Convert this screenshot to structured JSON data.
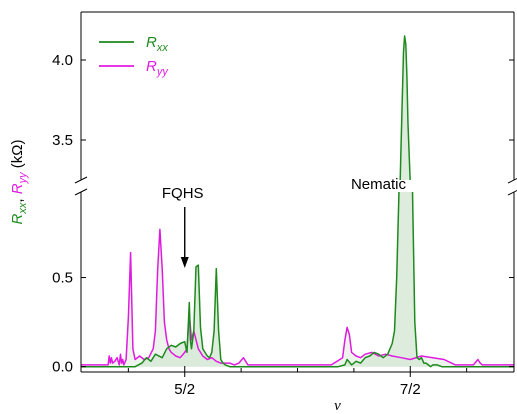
{
  "chart_data": {
    "type": "line",
    "xlabel": "ν",
    "ylabel": {
      "parts": [
        {
          "text": "R",
          "sub": "xx",
          "color": "#1e8a1e"
        },
        {
          "text": ", ",
          "sub": "",
          "color": "#000000"
        },
        {
          "text": "R",
          "sub": "yy",
          "color": "#e01be0"
        },
        {
          "text": " (kΩ)",
          "sub": "",
          "color": "#000000"
        }
      ]
    },
    "x_ticks": [
      {
        "value": 2.5,
        "label": "5/2"
      },
      {
        "value": 3.5,
        "label": "7/2"
      }
    ],
    "x_minor_ticks": [
      2.25,
      2.75,
      3.0,
      3.25,
      3.75
    ],
    "xlim": [
      2.04,
      3.96
    ],
    "y_panels": {
      "upper": {
        "ylim": [
          3.25,
          4.3
        ],
        "ticks": [
          {
            "value": 3.5,
            "label": "3.5"
          },
          {
            "value": 4.0,
            "label": "4.0"
          }
        ]
      },
      "lower": {
        "ylim": [
          -0.03,
          0.98
        ],
        "ticks": [
          {
            "value": 0.0,
            "label": "0.0"
          },
          {
            "value": 0.5,
            "label": "0.5"
          }
        ]
      }
    },
    "colors": {
      "Rxx": "#1e8a1e",
      "Ryy": "#e01be0",
      "fill": "#d9ead9"
    },
    "legend": {
      "placement": "top-left",
      "entries": [
        {
          "key": "Rxx",
          "main": "R",
          "sub": "xx",
          "color": "#1e8a1e"
        },
        {
          "key": "Ryy",
          "main": "R",
          "sub": "yy",
          "color": "#e01be0"
        }
      ]
    },
    "annotations": [
      {
        "text": "FQHS",
        "x": 2.5,
        "y": 0.7,
        "arrow": true
      },
      {
        "text": "Nematic",
        "x": 3.43,
        "y": 2.0,
        "arrow": false
      }
    ],
    "series": [
      {
        "key": "Rxx",
        "x": [
          2.04,
          2.28,
          2.31,
          2.33,
          2.35,
          2.37,
          2.4,
          2.42,
          2.44,
          2.46,
          2.48,
          2.5,
          2.51,
          2.52,
          2.525,
          2.53,
          2.54,
          2.55,
          2.56,
          2.57,
          2.58,
          2.59,
          2.6,
          2.61,
          2.62,
          2.63,
          2.64,
          2.65,
          2.66,
          2.67,
          2.68,
          2.7,
          2.74,
          2.8,
          2.9,
          3.0,
          3.1,
          3.18,
          3.21,
          3.22,
          3.24,
          3.26,
          3.28,
          3.3,
          3.32,
          3.34,
          3.36,
          3.38,
          3.4,
          3.42,
          3.43,
          3.44,
          3.45,
          3.455,
          3.46,
          3.47,
          3.475,
          3.48,
          3.485,
          3.49,
          3.5,
          3.51,
          3.52,
          3.53,
          3.54,
          3.55,
          3.56,
          3.57,
          3.58,
          3.59,
          3.6,
          3.62,
          3.64,
          3.7,
          3.8,
          3.96
        ],
        "y": [
          0.0,
          0.0,
          0.02,
          0.05,
          0.03,
          0.07,
          0.05,
          0.1,
          0.12,
          0.11,
          0.13,
          0.14,
          0.08,
          0.36,
          0.15,
          0.1,
          0.2,
          0.56,
          0.57,
          0.22,
          0.1,
          0.08,
          0.06,
          0.05,
          0.08,
          0.2,
          0.55,
          0.2,
          0.04,
          0.02,
          0.01,
          0.0,
          0.0,
          0.0,
          0.0,
          0.0,
          0.0,
          0.0,
          0.01,
          0.04,
          0.01,
          0.03,
          0.02,
          0.05,
          0.06,
          0.08,
          0.07,
          0.05,
          0.07,
          0.13,
          0.2,
          0.5,
          1.2,
          2.5,
          3.5,
          4.05,
          4.15,
          4.1,
          3.9,
          3.6,
          2.5,
          1.2,
          0.25,
          0.05,
          0.04,
          0.05,
          0.02,
          0.02,
          0.01,
          0.0,
          0.01,
          0.01,
          0.0,
          0.0,
          0.0,
          0.0
        ]
      },
      {
        "key": "Ryy",
        "x": [
          2.04,
          2.16,
          2.165,
          2.17,
          2.175,
          2.18,
          2.19,
          2.2,
          2.21,
          2.215,
          2.22,
          2.225,
          2.23,
          2.24,
          2.25,
          2.26,
          2.27,
          2.28,
          2.3,
          2.32,
          2.34,
          2.36,
          2.37,
          2.38,
          2.39,
          2.4,
          2.41,
          2.42,
          2.43,
          2.44,
          2.45,
          2.46,
          2.48,
          2.5,
          2.51,
          2.52,
          2.53,
          2.54,
          2.56,
          2.58,
          2.6,
          2.62,
          2.64,
          2.66,
          2.68,
          2.7,
          2.72,
          2.74,
          2.76,
          2.78,
          2.8,
          3.0,
          3.15,
          3.2,
          3.21,
          3.22,
          3.23,
          3.24,
          3.26,
          3.28,
          3.3,
          3.33,
          3.36,
          3.39,
          3.42,
          3.46,
          3.5,
          3.55,
          3.6,
          3.65,
          3.7,
          3.72,
          3.78,
          3.8,
          3.81,
          3.82,
          3.9,
          3.96
        ],
        "y": [
          0.01,
          0.01,
          0.06,
          0.02,
          0.05,
          0.02,
          0.03,
          0.05,
          0.01,
          0.07,
          0.02,
          0.04,
          0.01,
          0.04,
          0.28,
          0.64,
          0.1,
          0.04,
          0.06,
          0.04,
          0.05,
          0.1,
          0.2,
          0.55,
          0.77,
          0.55,
          0.25,
          0.15,
          0.1,
          0.08,
          0.07,
          0.06,
          0.05,
          0.08,
          0.1,
          0.3,
          0.15,
          0.2,
          0.1,
          0.06,
          0.04,
          0.05,
          0.03,
          0.02,
          0.02,
          0.02,
          0.01,
          0.02,
          0.05,
          0.01,
          0.01,
          0.01,
          0.01,
          0.05,
          0.15,
          0.22,
          0.18,
          0.08,
          0.06,
          0.05,
          0.07,
          0.08,
          0.06,
          0.07,
          0.06,
          0.05,
          0.04,
          0.06,
          0.05,
          0.04,
          0.01,
          0.01,
          0.01,
          0.04,
          0.02,
          0.01,
          0.01,
          0.01
        ]
      }
    ]
  }
}
